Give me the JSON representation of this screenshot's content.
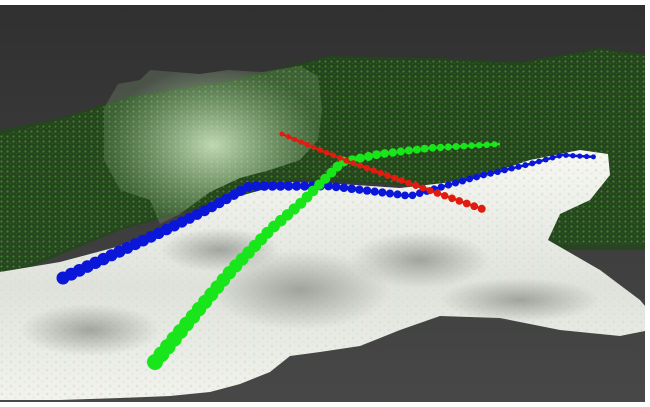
{
  "scene": {
    "description": "",
    "background_color": "#3b3c3b",
    "frame_color": "#ffffff",
    "terrain_color": "#e9ece7",
    "foliage_color": "#2f6a22",
    "paths": [
      {
        "color": "#0a16d8",
        "shape": "beaded-polyline"
      },
      {
        "color": "#19e61a",
        "shape": "beaded-polyline"
      },
      {
        "color": "#e01c10",
        "shape": "beaded-polyline"
      }
    ]
  }
}
